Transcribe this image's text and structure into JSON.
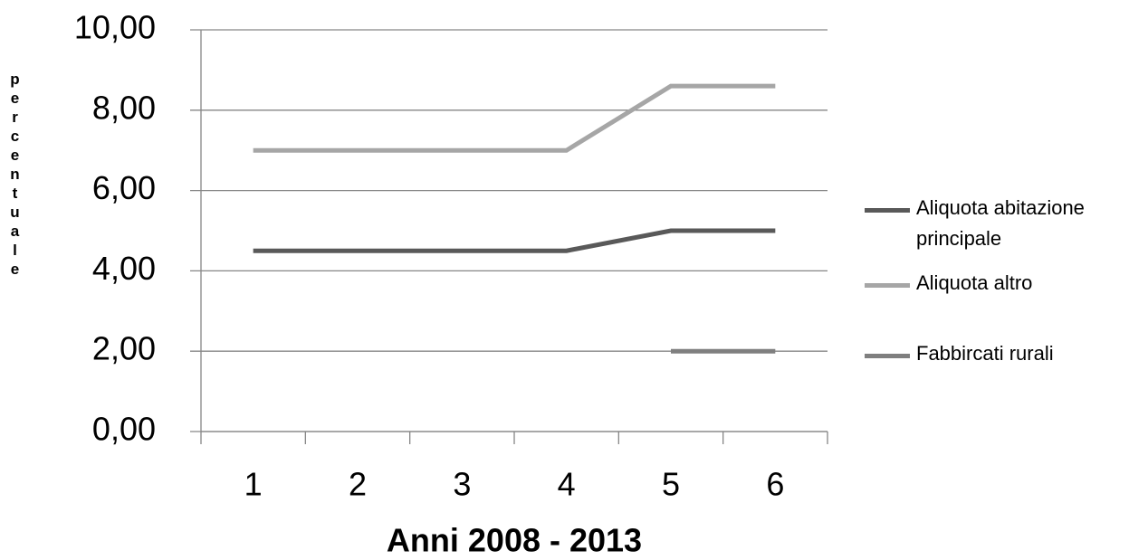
{
  "chart_data": {
    "type": "line",
    "x_label": "Anni 2008 - 2013",
    "y_label": "percentuale",
    "categories": [
      "1",
      "2",
      "3",
      "4",
      "5",
      "6"
    ],
    "series": [
      {
        "name": "Aliquota abitazione principale",
        "color": "#595959",
        "values": [
          4.5,
          4.5,
          4.5,
          4.5,
          5,
          5
        ]
      },
      {
        "name": "Aliquota altro",
        "color": "#a6a6a6",
        "values": [
          7,
          7,
          7,
          7,
          8.6,
          8.6
        ]
      },
      {
        "name": "Fabbircati rurali",
        "color": "#7f7f7f",
        "values": [
          null,
          null,
          null,
          null,
          2,
          2
        ]
      }
    ],
    "ylim": [
      0,
      10
    ],
    "yticks": [
      {
        "value": 0,
        "label": "0,00"
      },
      {
        "value": 2,
        "label": "2,00"
      },
      {
        "value": 4,
        "label": "4,00"
      },
      {
        "value": 6,
        "label": "6,00"
      },
      {
        "value": 8,
        "label": "8,00"
      },
      {
        "value": 10,
        "label": "10,00"
      }
    ],
    "grid": true,
    "legend": "right"
  }
}
